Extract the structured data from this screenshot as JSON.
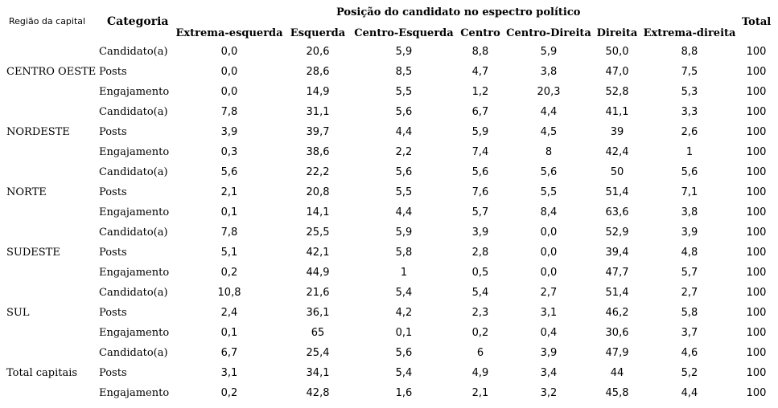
{
  "table": {
    "header": {
      "region": "Região da capital",
      "category": "Categoria",
      "group": "Posição do candidato no espectro político",
      "total": "Total",
      "columns": [
        "Extrema-esquerda",
        "Esquerda",
        "Centro-Esquerda",
        "Centro",
        "Centro-Direita",
        "Direita",
        "Extrema-direita"
      ]
    },
    "rows": [
      {
        "region": "",
        "category": "Candidato(a)",
        "values": [
          "0,0",
          "20,6",
          "5,9",
          "8,8",
          "5,9",
          "50,0",
          "8,8"
        ],
        "total": "100"
      },
      {
        "region": "CENTRO OESTE",
        "category": "Posts",
        "values": [
          "0,0",
          "28,6",
          "8,5",
          "4,7",
          "3,8",
          "47,0",
          "7,5"
        ],
        "total": "100"
      },
      {
        "region": "",
        "category": "Engajamento",
        "values": [
          "0,0",
          "14,9",
          "5,5",
          "1,2",
          "20,3",
          "52,8",
          "5,3"
        ],
        "total": "100"
      },
      {
        "region": "",
        "category": "Candidato(a)",
        "values": [
          "7,8",
          "31,1",
          "5,6",
          "6,7",
          "4,4",
          "41,1",
          "3,3"
        ],
        "total": "100"
      },
      {
        "region": "NORDESTE",
        "category": "Posts",
        "values": [
          "3,9",
          "39,7",
          "4,4",
          "5,9",
          "4,5",
          "39",
          "2,6"
        ],
        "total": "100"
      },
      {
        "region": "",
        "category": "Engajamento",
        "values": [
          "0,3",
          "38,6",
          "2,2",
          "7,4",
          "8",
          "42,4",
          "1"
        ],
        "total": "100"
      },
      {
        "region": "",
        "category": "Candidato(a)",
        "values": [
          "5,6",
          "22,2",
          "5,6",
          "5,6",
          "5,6",
          "50",
          "5,6"
        ],
        "total": "100"
      },
      {
        "region": "NORTE",
        "category": "Posts",
        "values": [
          "2,1",
          "20,8",
          "5,5",
          "7,6",
          "5,5",
          "51,4",
          "7,1"
        ],
        "total": "100"
      },
      {
        "region": "",
        "category": "Engajamento",
        "values": [
          "0,1",
          "14,1",
          "4,4",
          "5,7",
          "8,4",
          "63,6",
          "3,8"
        ],
        "total": "100"
      },
      {
        "region": "",
        "category": "Candidato(a)",
        "values": [
          "7,8",
          "25,5",
          "5,9",
          "3,9",
          "0,0",
          "52,9",
          "3,9"
        ],
        "total": "100"
      },
      {
        "region": "SUDESTE",
        "category": "Posts",
        "values": [
          "5,1",
          "42,1",
          "5,8",
          "2,8",
          "0,0",
          "39,4",
          "4,8"
        ],
        "total": "100"
      },
      {
        "region": "",
        "category": "Engajamento",
        "values": [
          "0,2",
          "44,9",
          "1",
          "0,5",
          "0,0",
          "47,7",
          "5,7"
        ],
        "total": "100"
      },
      {
        "region": "",
        "category": "Candidato(a)",
        "values": [
          "10,8",
          "21,6",
          "5,4",
          "5,4",
          "2,7",
          "51,4",
          "2,7"
        ],
        "total": "100"
      },
      {
        "region": "SUL",
        "category": "Posts",
        "values": [
          "2,4",
          "36,1",
          "4,2",
          "2,3",
          "3,1",
          "46,2",
          "5,8"
        ],
        "total": "100"
      },
      {
        "region": "",
        "category": "Engajamento",
        "values": [
          "0,1",
          "65",
          "0,1",
          "0,2",
          "0,4",
          "30,6",
          "3,7"
        ],
        "total": "100"
      },
      {
        "region": "",
        "category": "Candidato(a)",
        "values": [
          "6,7",
          "25,4",
          "5,6",
          "6",
          "3,9",
          "47,9",
          "4,6"
        ],
        "total": "100"
      },
      {
        "region": "Total capitais",
        "category": "Posts",
        "values": [
          "3,1",
          "34,1",
          "5,4",
          "4,9",
          "3,4",
          "44",
          "5,2"
        ],
        "total": "100"
      },
      {
        "region": "",
        "category": "Engajamento",
        "values": [
          "0,2",
          "42,8",
          "1,6",
          "2,1",
          "3,2",
          "45,8",
          "4,4"
        ],
        "total": "100"
      }
    ]
  }
}
